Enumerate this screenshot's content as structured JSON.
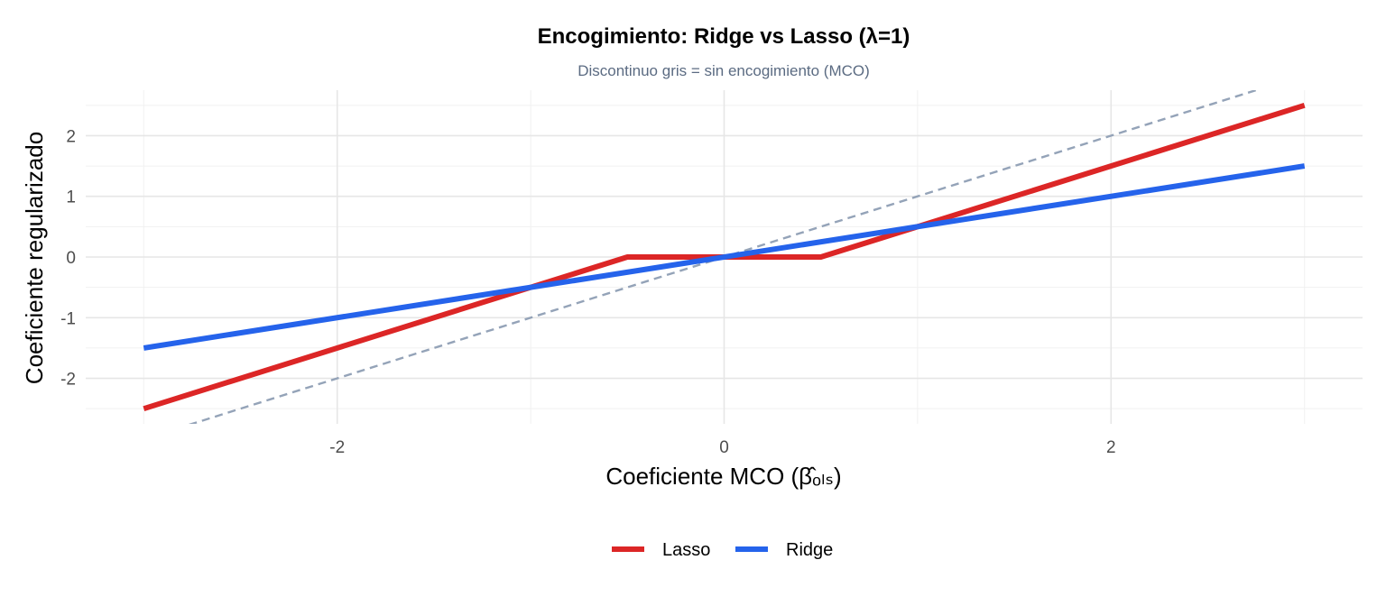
{
  "chart_data": {
    "type": "line",
    "title": "Encogimiento: Ridge vs Lasso (λ=1)",
    "subtitle": "Discontinuo gris = sin encogimiento (MCO)",
    "xlabel": "Coeficiente MCO (β̂ₒₗₛ)",
    "ylabel": "Coeficiente regularizado",
    "xlim": [
      -3.3,
      3.3
    ],
    "ylim": [
      -2.75,
      2.75
    ],
    "x_ticks": [
      -2,
      0,
      2
    ],
    "x_tick_labels": [
      "-2",
      "0",
      "2"
    ],
    "y_ticks": [
      -2,
      -1,
      0,
      1,
      2
    ],
    "y_tick_labels": [
      "-2",
      "-1",
      "0",
      "1",
      "2"
    ],
    "grid": true,
    "legend_position": "bottom",
    "series": [
      {
        "name": "Lasso",
        "color": "#dc2626",
        "x": [
          -3,
          -0.5,
          0.5,
          3
        ],
        "y": [
          -2.5,
          0,
          0,
          2.5
        ]
      },
      {
        "name": "Ridge",
        "color": "#2563eb",
        "x": [
          -3,
          3
        ],
        "y": [
          -1.5,
          1.5
        ]
      }
    ],
    "reference_line": {
      "style": "dashed",
      "color": "#94a3b8",
      "x": [
        -3.3,
        3.3
      ],
      "y": [
        -3.3,
        3.3
      ]
    }
  }
}
